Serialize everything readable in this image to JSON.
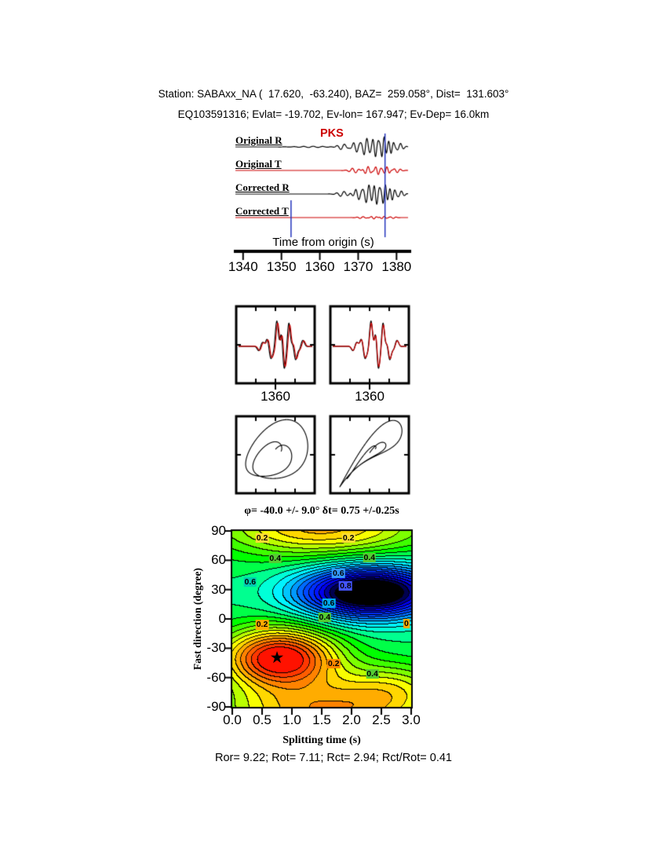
{
  "header": {
    "line1": "Station: SABAxx_NA (  17.620,  -63.240), BAZ=  259.058°, Dist=  131.603°",
    "line2": "EQ103591316; Evlat= -19.702, Ev-lon= 167.947; Ev-Dep= 16.0km"
  },
  "seismograms": {
    "phase_label": "PKS",
    "phase_color": "#cc0000",
    "xlabel": "Time from origin (s)",
    "x_ticks": [
      "1340",
      "1350",
      "1360",
      "1370",
      "1380"
    ],
    "traces": [
      {
        "label": "Original R"
      },
      {
        "label": "Original T"
      },
      {
        "label": "Corrected R"
      },
      {
        "label": "Corrected T"
      }
    ]
  },
  "zoom_panels": {
    "left_x_tick": "1360",
    "right_x_tick": "1360"
  },
  "contour": {
    "title": "φ= -40.0 +/- 9.0° δt= 0.75 +/-0.25s",
    "ylabel": "Fast direction (degree)",
    "xlabel": "Splitting time (s)",
    "y_ticks": [
      "90",
      "60",
      "30",
      "0",
      "-30",
      "-60",
      "-90"
    ],
    "x_ticks": [
      "0.0",
      "0.5",
      "1.0",
      "1.5",
      "2.0",
      "2.5",
      "3.0"
    ],
    "star_glyph": "★"
  },
  "footer": {
    "stats": "Ror= 9.22; Rot= 7.11; Rct= 2.94; Rct/Rot= 0.41"
  },
  "chart_data": [
    {
      "type": "line",
      "panel": "waveforms",
      "xlabel": "Time from origin (s)",
      "x_range": [
        1338,
        1383
      ],
      "x_ticks": [
        1340,
        1350,
        1360,
        1370,
        1380
      ],
      "phase_arrival_label": "PKS",
      "window_markers": [
        1352.5,
        1377
      ],
      "traces": [
        {
          "name": "Original R",
          "color": "#000000",
          "amp": 13,
          "components": [
            [
              1358,
              5,
              0.06,
              0.4,
              0.9
            ],
            [
              1366,
              1.8,
              0.28,
              0.5,
              0.2
            ],
            [
              1369.5,
              1.4,
              -0.5,
              0.6,
              1.1
            ],
            [
              1372,
              1.2,
              0.85,
              0.65,
              0.4
            ],
            [
              1374.5,
              1.1,
              -0.95,
              0.7,
              1.5
            ],
            [
              1376.5,
              1.0,
              1.0,
              0.8,
              0.1
            ],
            [
              1378.5,
              1.0,
              -0.6,
              0.75,
              1.2
            ],
            [
              1380.8,
              1.3,
              0.35,
              0.6,
              0.6
            ]
          ]
        },
        {
          "name": "Original T",
          "color": "#cc0000",
          "amp": 9,
          "components": [
            [
              1369,
              1.6,
              -0.35,
              0.55,
              0.3
            ],
            [
              1372.5,
              1.3,
              0.55,
              0.65,
              1.2
            ],
            [
              1375,
              1.1,
              -0.6,
              0.7,
              0.4
            ],
            [
              1377.5,
              1.1,
              0.5,
              0.75,
              1.6
            ],
            [
              1380,
              1.4,
              -0.3,
              0.6,
              0.8
            ]
          ]
        },
        {
          "name": "Corrected R",
          "color": "#000000",
          "amp": 13,
          "components": [
            [
              1366,
              1.8,
              0.25,
              0.5,
              0.5
            ],
            [
              1370,
              1.4,
              -0.55,
              0.6,
              0.9
            ],
            [
              1372.5,
              1.2,
              0.9,
              0.65,
              0.2
            ],
            [
              1374.8,
              1.1,
              -1.0,
              0.7,
              1.4
            ],
            [
              1376.8,
              1.0,
              0.95,
              0.8,
              0.0
            ],
            [
              1378.8,
              1.0,
              -0.55,
              0.75,
              1.1
            ],
            [
              1381,
              1.3,
              0.3,
              0.6,
              0.5
            ]
          ]
        },
        {
          "name": "Corrected T",
          "color": "#cc0000",
          "amp": 6,
          "components": [
            [
              1371,
              1.5,
              0.2,
              0.6,
              0.4
            ],
            [
              1374,
              1.2,
              -0.28,
              0.7,
              1.1
            ],
            [
              1376.5,
              1.1,
              0.25,
              0.75,
              0.3
            ],
            [
              1379,
              1.2,
              -0.18,
              0.65,
              0.9
            ]
          ]
        }
      ]
    },
    {
      "type": "line",
      "panel": "zoom-windows",
      "x_tick_label": "1360",
      "series_colors": [
        "#000000",
        "#cc0000"
      ],
      "amp": 34,
      "components": [
        [
          0.3,
          0.05,
          0.25,
          6,
          0
        ],
        [
          0.42,
          0.05,
          -0.5,
          7,
          0.5
        ],
        [
          0.52,
          0.045,
          0.95,
          7,
          1.6
        ],
        [
          0.6,
          0.04,
          -1.0,
          8,
          0.2
        ],
        [
          0.68,
          0.04,
          0.85,
          8,
          1.4
        ],
        [
          0.76,
          0.045,
          -0.55,
          7,
          0.7
        ],
        [
          0.85,
          0.05,
          0.3,
          6,
          0.3
        ]
      ],
      "red_offset_left": 0.012,
      "red_offset_right": 0.004
    },
    {
      "type": "line",
      "panel": "particle-motion",
      "left": {
        "phase": 1.25,
        "wobble": 0.12
      },
      "right": {
        "phase": 0.35,
        "wobble": 0.27
      }
    },
    {
      "type": "heatmap",
      "panel": "misfit-contour",
      "title": "φ= -40.0 +/- 9.0° δt= 0.75 +/-0.25s",
      "xlabel": "Splitting time (s)",
      "ylabel": "Fast direction (degree)",
      "x_range": [
        0,
        3
      ],
      "y_range": [
        -90,
        90
      ],
      "x_ticks": [
        0.0,
        0.5,
        1.0,
        1.5,
        2.0,
        2.5,
        3.0
      ],
      "y_ticks": [
        90,
        60,
        30,
        0,
        -30,
        -60,
        -90
      ],
      "best_fit": {
        "phi_deg": -40.0,
        "phi_err_deg": 9.0,
        "dt_s": 0.75,
        "dt_err_s": 0.25
      },
      "star": {
        "dt": 0.75,
        "phi": -40
      },
      "field": {
        "background": 0.48,
        "level_step": 0.04,
        "bumps": [
          [
            -0.5,
            0.8,
            0.95,
            -40,
            30
          ],
          [
            0.62,
            2.3,
            1.15,
            27,
            26
          ],
          [
            -0.3,
            1.5,
            1.7,
            95,
            32
          ],
          [
            -0.3,
            1.5,
            1.7,
            -95,
            32
          ],
          [
            -0.15,
            2.7,
            0.9,
            -70,
            26
          ]
        ]
      },
      "contour_labels": [
        {
          "text": "0.2",
          "dt": 0.5,
          "phi": 83,
          "bg": "#ffdd33"
        },
        {
          "text": "0.2",
          "dt": 1.95,
          "phi": 83,
          "bg": "#ffdd33"
        },
        {
          "text": "0.4",
          "dt": 0.72,
          "phi": 62,
          "bg": "#55cc33"
        },
        {
          "text": "0.4",
          "dt": 2.3,
          "phi": 63,
          "bg": "#55cc33"
        },
        {
          "text": "0.6",
          "dt": 0.3,
          "phi": 38,
          "bg": "#00ccb2"
        },
        {
          "text": "0.6",
          "dt": 1.78,
          "phi": 47,
          "bg": "#3399ff"
        },
        {
          "text": "0.8",
          "dt": 1.9,
          "phi": 34,
          "bg": "#4455ff"
        },
        {
          "text": "0.6",
          "dt": 1.62,
          "phi": 16,
          "bg": "#00aaee"
        },
        {
          "text": "0.4",
          "dt": 1.55,
          "phi": 2,
          "bg": "#55cc33"
        },
        {
          "text": "0.2",
          "dt": 0.5,
          "phi": -6,
          "bg": "#ffaa00"
        },
        {
          "text": "0",
          "dt": 2.92,
          "phi": -5,
          "bg": "#ffaa00"
        },
        {
          "text": "0.2",
          "dt": 1.7,
          "phi": -46,
          "bg": "#ff8800"
        },
        {
          "text": "0.4",
          "dt": 2.35,
          "phi": -56,
          "bg": "#55cc33"
        }
      ]
    },
    {
      "type": "table",
      "panel": "quality-stats",
      "values": {
        "Ror": 9.22,
        "Rot": 7.11,
        "Rct": 2.94,
        "Rct/Rot": 0.41
      }
    }
  ]
}
